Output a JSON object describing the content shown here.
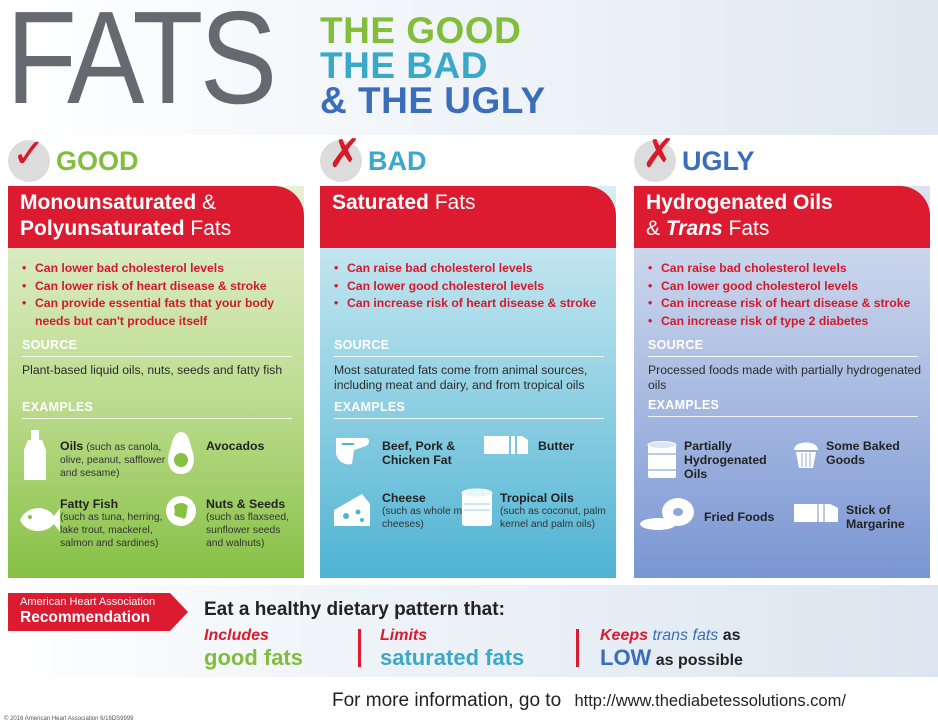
{
  "header": {
    "main_word": "FATS",
    "tag_good": "THE GOOD",
    "tag_bad": "THE BAD",
    "tag_ugly": "& THE UGLY"
  },
  "columns": {
    "good": {
      "label": "GOOD",
      "mark": "✓",
      "title_line1_bold": "Monounsaturated",
      "title_line1_rest": " &",
      "title_line2_bold": "Polyunsaturated",
      "title_line2_rest": " Fats",
      "bullets": [
        "Can lower bad cholesterol levels",
        "Can lower risk of heart disease & stroke",
        "Can provide essential fats that your body needs but can't produce itself"
      ],
      "source_heading": "SOURCE",
      "source_text": "Plant-based liquid oils, nuts, seeds and fatty fish",
      "examples_heading": "EXAMPLES",
      "examples": [
        {
          "title": "Oils",
          "note": "(such as canola, olive, peanut, safflower and sesame)"
        },
        {
          "title": "Avocados",
          "note": ""
        },
        {
          "title": "Fatty Fish",
          "note": "(such as tuna, herring, lake trout, mackerel, salmon and sardines)"
        },
        {
          "title": "Nuts & Seeds",
          "note": "(such as flaxseed, sunflower seeds and walnuts)"
        }
      ]
    },
    "bad": {
      "label": "BAD",
      "mark": "✗",
      "title_line1_bold": "Saturated",
      "title_line1_rest": " Fats",
      "bullets": [
        "Can raise bad cholesterol levels",
        "Can lower good cholesterol levels",
        "Can increase risk of heart disease & stroke"
      ],
      "source_heading": "SOURCE",
      "source_text": "Most saturated fats come from animal sources, including meat and dairy, and from tropical oils",
      "examples_heading": "EXAMPLES",
      "examples": [
        {
          "title": "Beef, Pork & Chicken Fat",
          "note": ""
        },
        {
          "title": "Butter",
          "note": ""
        },
        {
          "title": "Cheese",
          "note": "(such as whole milk cheeses)"
        },
        {
          "title": "Tropical Oils",
          "note": "(such as coconut, palm kernel and palm oils)"
        }
      ]
    },
    "ugly": {
      "label": "UGLY",
      "mark": "✗",
      "title_line1_bold": "Hydrogenated Oils",
      "title_line2_pre": "& ",
      "title_line2_italic": "Trans",
      "title_line2_rest": " Fats",
      "bullets": [
        "Can raise bad cholesterol levels",
        "Can lower good cholesterol levels",
        "Can increase risk of heart disease & stroke",
        "Can increase risk of type 2 diabetes"
      ],
      "source_heading": "SOURCE",
      "source_text": "Processed foods made with partially hydrogenated oils",
      "examples_heading": "EXAMPLES",
      "examples": [
        {
          "title": "Partially Hydrogenated Oils",
          "note": ""
        },
        {
          "title": "Some Baked Goods",
          "note": ""
        },
        {
          "title": "Fried Foods",
          "note": ""
        },
        {
          "title": "Stick of Margarine",
          "note": ""
        }
      ]
    }
  },
  "recommendation": {
    "org_line1": "American Heart Association",
    "org_line2": "Recommendation",
    "heading": "Eat a healthy dietary pattern that:",
    "item1_verb": "Includes",
    "item1_object": "good fats",
    "item2_verb": "Limits",
    "item2_object": "saturated fats",
    "item3_verb": "Keeps",
    "item3_mid": " trans fats",
    "item3_end": " as",
    "item3_low": "LOW",
    "item3_tail": " as possible"
  },
  "footer": {
    "text": "For more information, go to",
    "url": "http://www.thediabetessolutions.com/",
    "copyright": "© 2016 American Heart Association 6/16DS9999"
  },
  "colors": {
    "good": "#82bd3c",
    "bad": "#3aa8c8",
    "ugly": "#3a6dba",
    "red": "#dc1a30"
  }
}
